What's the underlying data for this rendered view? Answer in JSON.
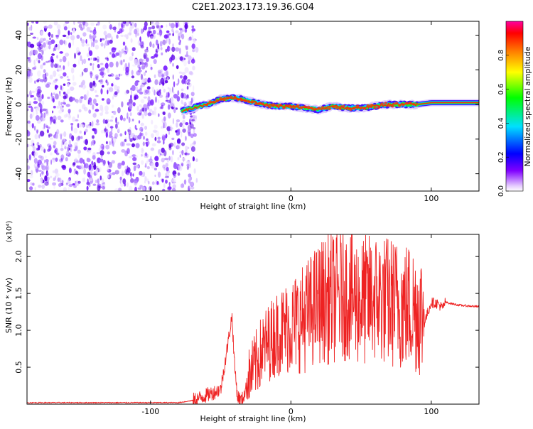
{
  "title": "C2E1.2023.173.19.36.G04",
  "chart_data": [
    {
      "type": "heatmap",
      "xlabel": "Height of straight line (km)",
      "ylabel": "Frequency (Hz)",
      "xlim": [
        -188,
        134
      ],
      "ylim": [
        -50,
        48
      ],
      "xticks": [
        -100,
        0,
        100
      ],
      "yticks": [
        -40,
        -20,
        0,
        20,
        40
      ],
      "noise_region_x": [
        -188,
        -70
      ],
      "signal_trace": {
        "x": [
          -78,
          -70,
          -60,
          -50,
          -40,
          -30,
          -20,
          -10,
          0,
          10,
          20,
          30,
          40,
          50,
          60,
          70,
          80,
          90,
          100,
          110,
          134
        ],
        "y": [
          -4,
          -2,
          0,
          3,
          4,
          2,
          0,
          -1,
          -1,
          -2,
          -3,
          -1,
          -2,
          -2,
          -1,
          0,
          0,
          0,
          1,
          1,
          1
        ]
      },
      "colorbar": {
        "label": "Normalized spectral amplitude",
        "range": [
          0,
          1
        ],
        "ticks": [
          0.0,
          0.2,
          0.4,
          0.6,
          0.8
        ]
      }
    },
    {
      "type": "line",
      "xlabel": "Height of straight line (km)",
      "ylabel": "SNR (10 * v/v)",
      "scale_label": "(x10⁴)",
      "xlim": [
        -188,
        134
      ],
      "ylim": [
        0,
        2.3
      ],
      "xticks": [
        -100,
        0,
        100
      ],
      "yticks": [
        0.5,
        1.0,
        1.5,
        2.0
      ],
      "ytick_labels": [
        "0.5",
        "1.0",
        "1.5",
        "2.0"
      ],
      "color": "#ee2222",
      "series": [
        {
          "x": [
            -188,
            -120,
            -80,
            -70,
            -60,
            -50,
            -45,
            -42,
            -40,
            -38,
            -35,
            -30,
            -20,
            -10,
            0,
            10,
            20,
            30,
            40,
            50,
            60,
            70,
            80,
            90,
            95,
            100,
            105,
            108,
            110,
            120,
            134
          ],
          "y": [
            0.02,
            0.02,
            0.02,
            0.05,
            0.12,
            0.2,
            0.8,
            1.2,
            0.5,
            0.1,
            0.05,
            0.3,
            0.7,
            0.9,
            1.0,
            1.1,
            1.3,
            1.35,
            1.4,
            1.3,
            1.35,
            1.3,
            1.25,
            1.2,
            1.1,
            1.38,
            1.36,
            1.3,
            1.38,
            1.34,
            1.32
          ]
        }
      ]
    }
  ]
}
